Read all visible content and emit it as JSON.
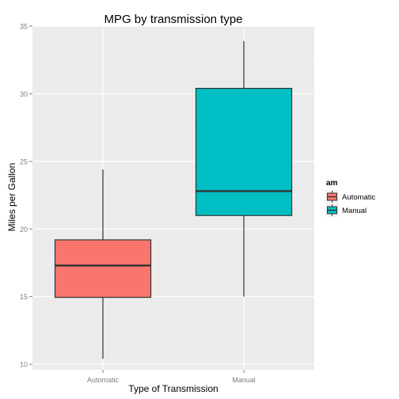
{
  "chart_data": {
    "type": "box",
    "title": "MPG by transmission type",
    "xlabel": "Type of Transmission",
    "ylabel": "Miles per Gallon",
    "ylim": [
      9.6,
      35.0
    ],
    "yticks": [
      10,
      15,
      20,
      25,
      30,
      35
    ],
    "categories": [
      "Automatic",
      "Manual"
    ],
    "grid": true,
    "legend": {
      "title": "am",
      "placement": "right",
      "entries": [
        "Automatic",
        "Manual"
      ]
    },
    "series": [
      {
        "name": "Automatic",
        "color": "#F8766D",
        "whisker_low": 10.4,
        "q1": 14.95,
        "median": 17.3,
        "q3": 19.2,
        "whisker_high": 24.4
      },
      {
        "name": "Manual",
        "color": "#00BFC4",
        "whisker_low": 15.0,
        "q1": 21.0,
        "median": 22.8,
        "q3": 30.4,
        "whisker_high": 33.9
      }
    ]
  },
  "colors": {
    "panel_background": "#EBEBEB",
    "grid_major": "#FFFFFF",
    "grid_minor": "#F5F5F5",
    "box_outline": "#333333",
    "automatic_fill": "#F8766D",
    "manual_fill": "#00BFC4"
  }
}
